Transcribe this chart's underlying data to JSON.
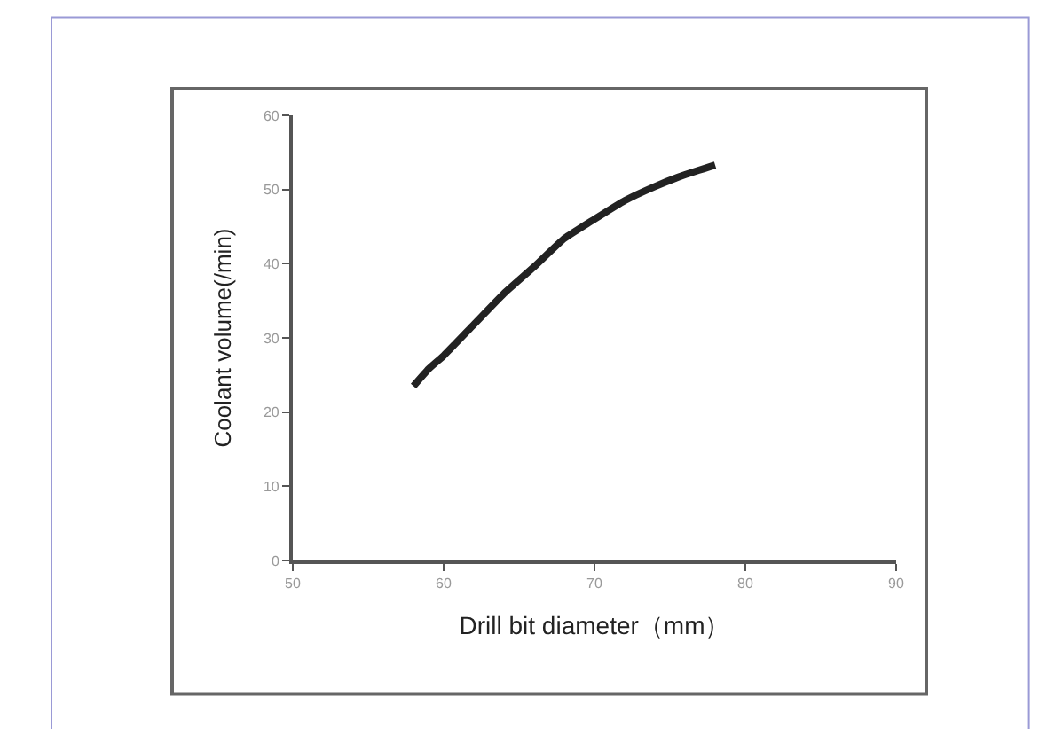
{
  "chart_data": {
    "type": "line",
    "xlabel": "Drill bit diameter（mm）",
    "ylabel": "Coolant volume(/min)",
    "x": [
      58,
      59,
      60,
      62,
      64,
      66,
      68,
      70,
      72,
      74,
      76,
      78
    ],
    "series": [
      {
        "color": "#222222",
        "values": [
          23.5,
          25.8,
          27.6,
          31.8,
          36.0,
          39.6,
          43.4,
          46.0,
          48.5,
          50.4,
          52.0,
          53.3
        ]
      }
    ],
    "xlim": [
      50,
      90
    ],
    "xticks": [
      50,
      60,
      70,
      80,
      90
    ],
    "ylim": [
      0,
      60
    ],
    "yticks": [
      0,
      10,
      20,
      30,
      40,
      50,
      60
    ],
    "legend": false,
    "marker": "none",
    "line_style": "solid"
  }
}
